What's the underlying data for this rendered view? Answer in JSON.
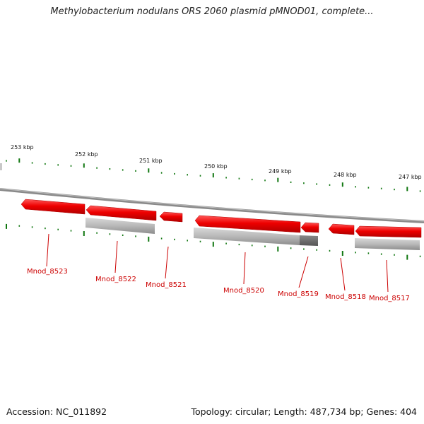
{
  "title": "Methylobacterium nodulans ORS 2060 plasmid pMNOD01, complete...",
  "accession": "Accession: NC_011892",
  "stats": "Topology: circular; Length: 487,734 bp; Genes: 404",
  "kbp_labels": [
    "253 kbp",
    "252 kbp",
    "251 kbp",
    "250 kbp",
    "249 kbp",
    "248 kbp",
    "247 kbp"
  ],
  "genes": [
    "Mnod_8523",
    "Mnod_8522",
    "Mnod_8521",
    "Mnod_8520",
    "Mnod_8519",
    "Mnod_8518",
    "Mnod_8517"
  ],
  "colors": {
    "gene": "#ee0000",
    "backbone": "#888888",
    "tick": "#117711",
    "feature_gray": "#b0b0b0",
    "feature_dark": "#666666",
    "label": "#cc0000"
  }
}
